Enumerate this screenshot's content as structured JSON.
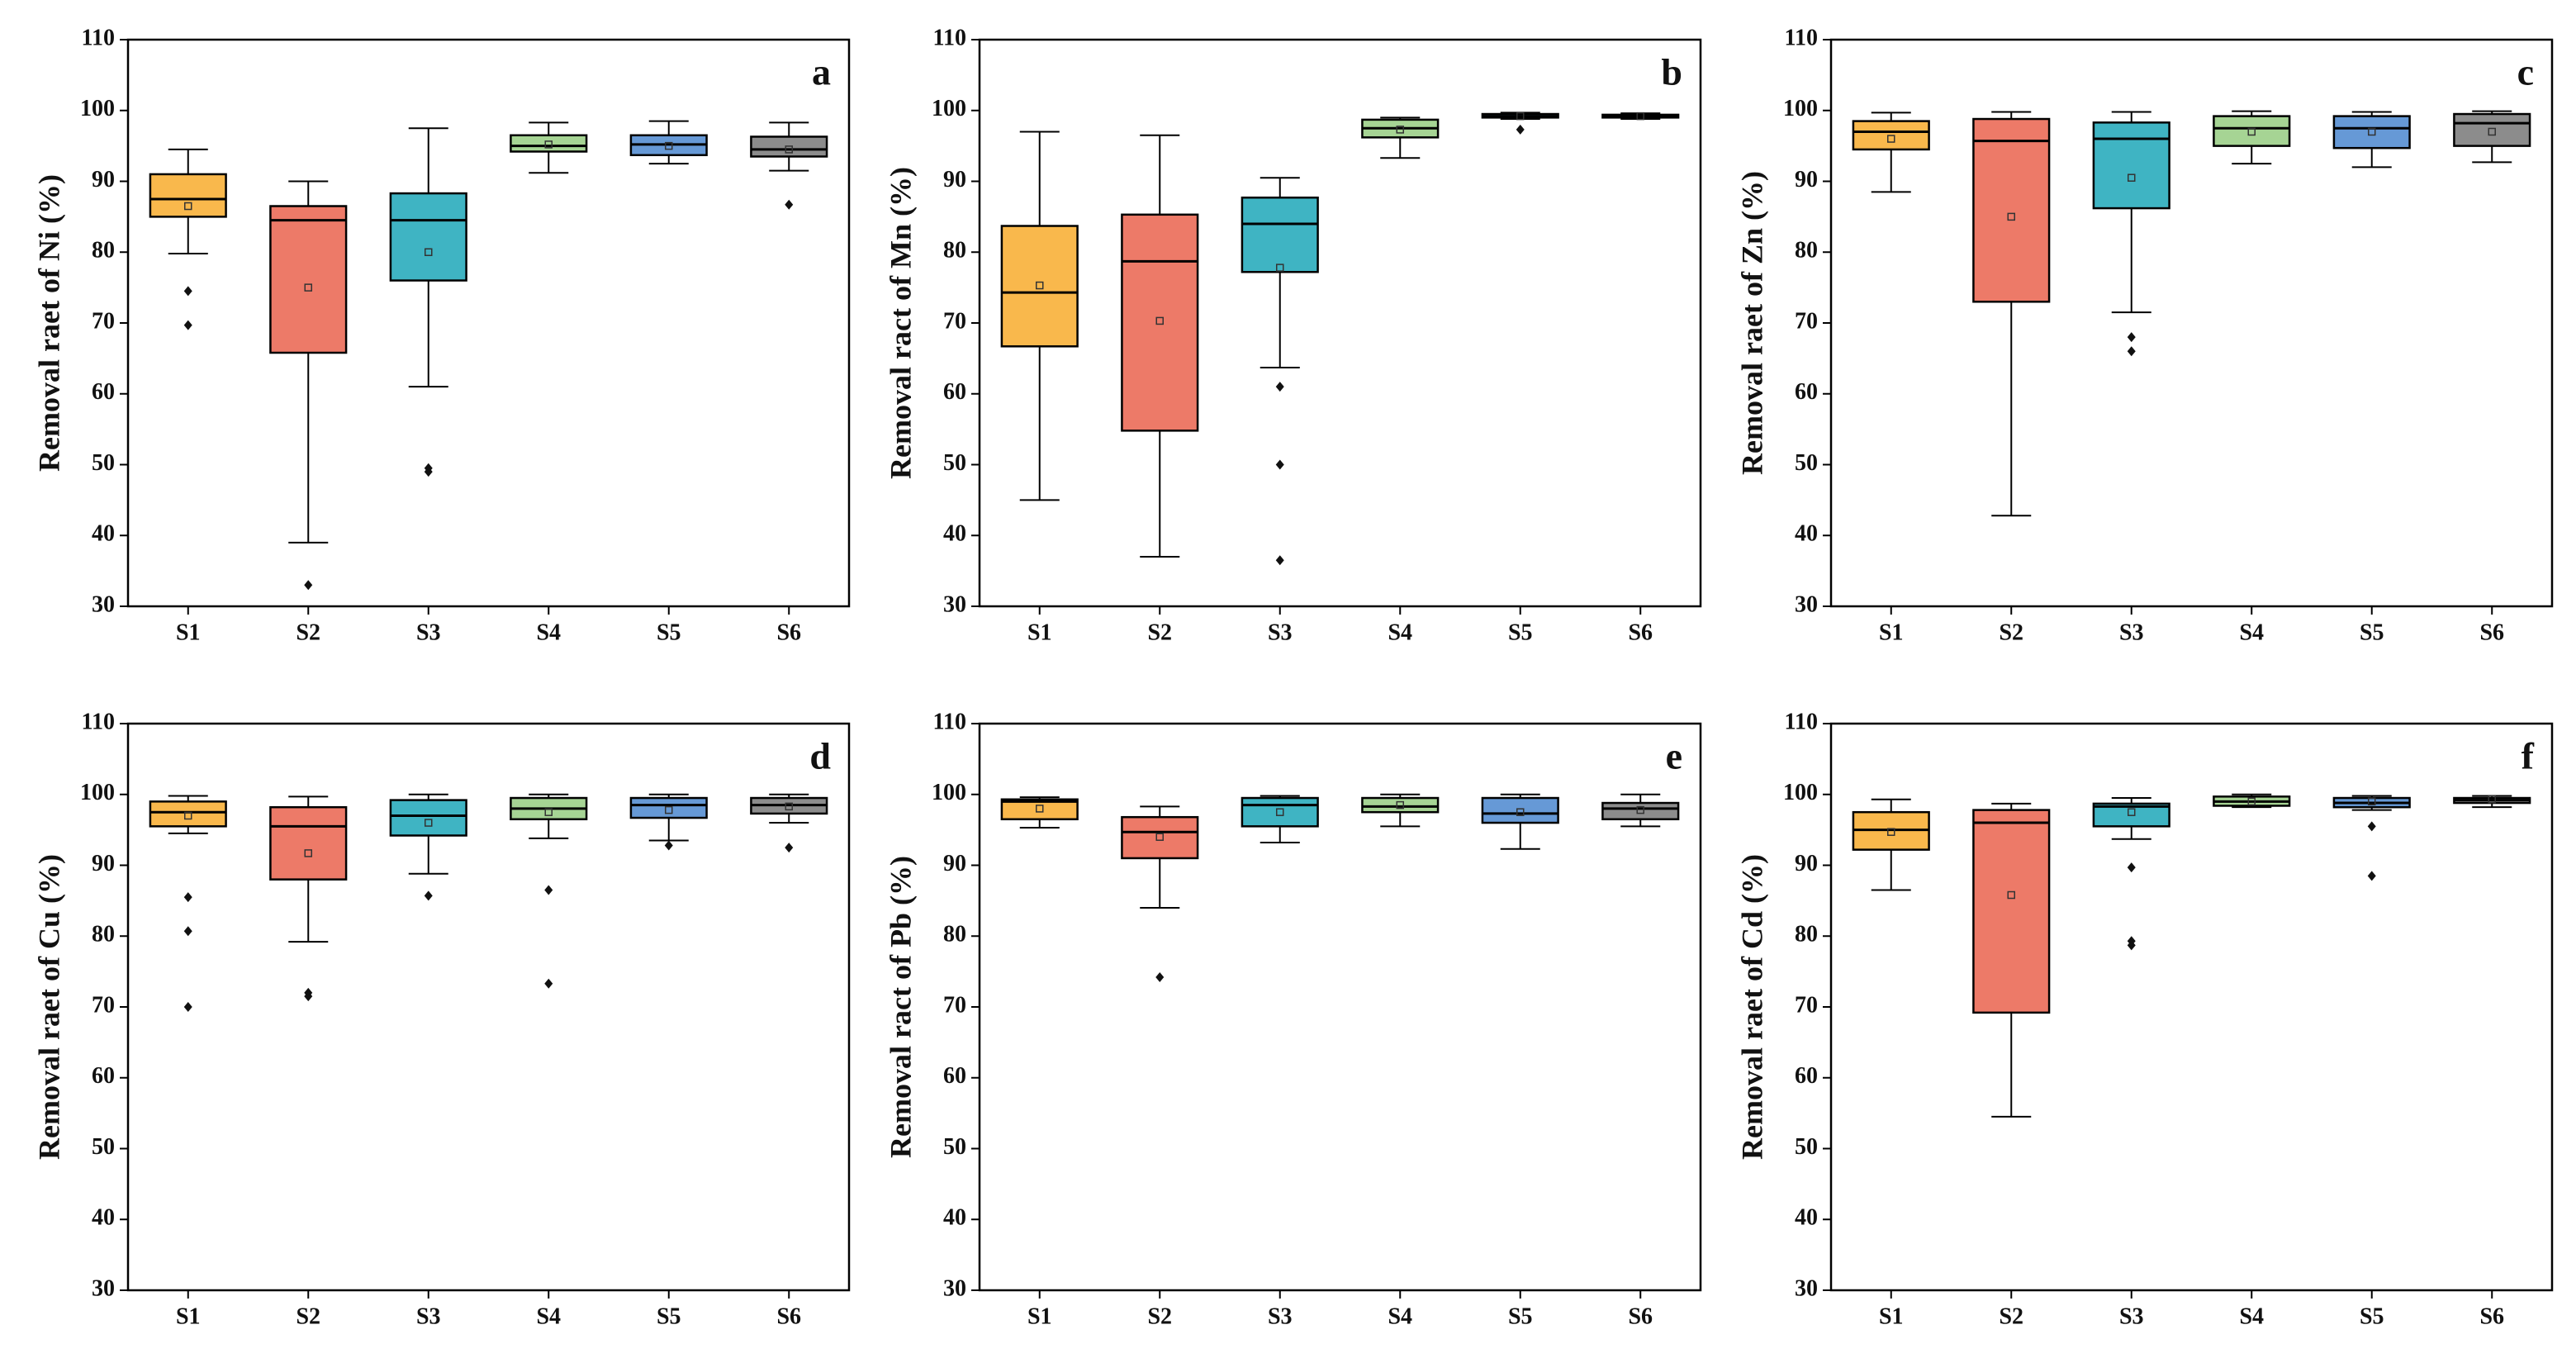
{
  "chart_data": [
    {
      "type": "box",
      "panel": "a",
      "ylabel": "Removal raet of Ni (%)",
      "categories": [
        "S1",
        "S2",
        "S3",
        "S4",
        "S5",
        "S6"
      ],
      "colors": [
        "#f9b84c",
        "#ed7a68",
        "#3fb4c3",
        "#a6d494",
        "#6699d6",
        "#8c8c8c"
      ],
      "ylim": [
        30,
        110
      ],
      "yticks": [
        30,
        40,
        50,
        60,
        70,
        80,
        90,
        100,
        110
      ],
      "boxes": [
        {
          "low": 79.8,
          "q1": 85,
          "median": 87.5,
          "q3": 91,
          "high": 94.5,
          "mean": 86.5,
          "outliers": [
            74.5,
            69.7
          ]
        },
        {
          "low": 39,
          "q1": 65.8,
          "median": 84.5,
          "q3": 86.5,
          "high": 90,
          "mean": 75,
          "outliers": [
            33
          ]
        },
        {
          "low": 61,
          "q1": 76,
          "median": 84.5,
          "q3": 88.3,
          "high": 97.5,
          "mean": 80,
          "outliers": [
            49.5,
            49
          ]
        },
        {
          "low": 91.2,
          "q1": 94.2,
          "median": 95,
          "q3": 96.5,
          "high": 98.3,
          "mean": 95.2,
          "outliers": []
        },
        {
          "low": 92.5,
          "q1": 93.7,
          "median": 95.2,
          "q3": 96.5,
          "high": 98.5,
          "mean": 95,
          "outliers": []
        },
        {
          "low": 91.5,
          "q1": 93.5,
          "median": 94.5,
          "q3": 96.3,
          "high": 98.3,
          "mean": 94.5,
          "outliers": [
            86.7
          ]
        }
      ]
    },
    {
      "type": "box",
      "panel": "b",
      "ylabel": "Removal ract of Mn (%)",
      "categories": [
        "S1",
        "S2",
        "S3",
        "S4",
        "S5",
        "S6"
      ],
      "colors": [
        "#f9b84c",
        "#ed7a68",
        "#3fb4c3",
        "#a6d494",
        "#6699d6",
        "#8c8c8c"
      ],
      "ylim": [
        30,
        110
      ],
      "yticks": [
        30,
        40,
        50,
        60,
        70,
        80,
        90,
        100,
        110
      ],
      "boxes": [
        {
          "low": 45,
          "q1": 66.7,
          "median": 74.3,
          "q3": 83.7,
          "high": 97,
          "mean": 75.3,
          "outliers": []
        },
        {
          "low": 37,
          "q1": 54.8,
          "median": 78.7,
          "q3": 85.3,
          "high": 96.5,
          "mean": 70.3,
          "outliers": []
        },
        {
          "low": 63.7,
          "q1": 77.2,
          "median": 84,
          "q3": 87.7,
          "high": 90.5,
          "mean": 77.8,
          "outliers": [
            61,
            50,
            36.5
          ]
        },
        {
          "low": 93.3,
          "q1": 96.2,
          "median": 97.5,
          "q3": 98.7,
          "high": 99,
          "mean": 97.3,
          "outliers": []
        },
        {
          "low": 98.8,
          "q1": 99,
          "median": 99.2,
          "q3": 99.5,
          "high": 99.7,
          "mean": 99.2,
          "outliers": [
            97.3
          ]
        },
        {
          "low": 98.8,
          "q1": 99,
          "median": 99.2,
          "q3": 99.4,
          "high": 99.6,
          "mean": 99.2,
          "outliers": []
        }
      ]
    },
    {
      "type": "box",
      "panel": "c",
      "ylabel": "Removal raet of Zn (%)",
      "categories": [
        "S1",
        "S2",
        "S3",
        "S4",
        "S5",
        "S6"
      ],
      "colors": [
        "#f9b84c",
        "#ed7a68",
        "#3fb4c3",
        "#a6d494",
        "#6699d6",
        "#8c8c8c"
      ],
      "ylim": [
        30,
        110
      ],
      "yticks": [
        30,
        40,
        50,
        60,
        70,
        80,
        90,
        100,
        110
      ],
      "boxes": [
        {
          "low": 88.5,
          "q1": 94.5,
          "median": 97,
          "q3": 98.5,
          "high": 99.7,
          "mean": 96,
          "outliers": []
        },
        {
          "low": 42.8,
          "q1": 73,
          "median": 95.7,
          "q3": 98.8,
          "high": 99.8,
          "mean": 85,
          "outliers": []
        },
        {
          "low": 71.5,
          "q1": 86.2,
          "median": 96,
          "q3": 98.3,
          "high": 99.8,
          "mean": 90.5,
          "outliers": [
            68,
            66
          ]
        },
        {
          "low": 92.5,
          "q1": 95,
          "median": 97.5,
          "q3": 99.2,
          "high": 99.9,
          "mean": 97,
          "outliers": []
        },
        {
          "low": 92,
          "q1": 94.7,
          "median": 97.5,
          "q3": 99.2,
          "high": 99.8,
          "mean": 97,
          "outliers": []
        },
        {
          "low": 92.7,
          "q1": 95,
          "median": 98.2,
          "q3": 99.5,
          "high": 99.9,
          "mean": 97,
          "outliers": []
        }
      ]
    },
    {
      "type": "box",
      "panel": "d",
      "ylabel": "Removal raet of Cu (%)",
      "categories": [
        "S1",
        "S2",
        "S3",
        "S4",
        "S5",
        "S6"
      ],
      "colors": [
        "#f9b84c",
        "#ed7a68",
        "#3fb4c3",
        "#a6d494",
        "#6699d6",
        "#8c8c8c"
      ],
      "ylim": [
        30,
        110
      ],
      "yticks": [
        30,
        40,
        50,
        60,
        70,
        80,
        90,
        100,
        110
      ],
      "boxes": [
        {
          "low": 94.5,
          "q1": 95.5,
          "median": 97.5,
          "q3": 99,
          "high": 99.8,
          "mean": 97,
          "outliers": [
            85.5,
            80.7,
            70
          ]
        },
        {
          "low": 79.2,
          "q1": 88,
          "median": 95.5,
          "q3": 98.2,
          "high": 99.7,
          "mean": 91.7,
          "outliers": [
            72,
            71.5
          ]
        },
        {
          "low": 88.8,
          "q1": 94.2,
          "median": 97,
          "q3": 99.2,
          "high": 100,
          "mean": 96,
          "outliers": [
            85.7
          ]
        },
        {
          "low": 93.8,
          "q1": 96.5,
          "median": 98,
          "q3": 99.5,
          "high": 100,
          "mean": 97.5,
          "outliers": [
            86.5,
            73.3
          ]
        },
        {
          "low": 93.5,
          "q1": 96.7,
          "median": 98.5,
          "q3": 99.5,
          "high": 100,
          "mean": 97.8,
          "outliers": [
            92.8
          ]
        },
        {
          "low": 96,
          "q1": 97.3,
          "median": 98.5,
          "q3": 99.5,
          "high": 100,
          "mean": 98.3,
          "outliers": [
            92.5
          ]
        }
      ]
    },
    {
      "type": "box",
      "panel": "e",
      "ylabel": "Removal ract of Pb (%)",
      "categories": [
        "S1",
        "S2",
        "S3",
        "S4",
        "S5",
        "S6"
      ],
      "colors": [
        "#f9b84c",
        "#ed7a68",
        "#3fb4c3",
        "#a6d494",
        "#6699d6",
        "#8c8c8c"
      ],
      "ylim": [
        30,
        110
      ],
      "yticks": [
        30,
        40,
        50,
        60,
        70,
        80,
        90,
        100,
        110
      ],
      "boxes": [
        {
          "low": 95.3,
          "q1": 96.5,
          "median": 99,
          "q3": 99.3,
          "high": 99.6,
          "mean": 98,
          "outliers": []
        },
        {
          "low": 84,
          "q1": 91,
          "median": 94.7,
          "q3": 96.8,
          "high": 98.3,
          "mean": 94,
          "outliers": [
            74.2
          ]
        },
        {
          "low": 93.2,
          "q1": 95.5,
          "median": 98.5,
          "q3": 99.5,
          "high": 99.8,
          "mean": 97.5,
          "outliers": []
        },
        {
          "low": 95.5,
          "q1": 97.5,
          "median": 98.3,
          "q3": 99.5,
          "high": 100,
          "mean": 98.5,
          "outliers": []
        },
        {
          "low": 92.3,
          "q1": 96,
          "median": 97.3,
          "q3": 99.5,
          "high": 100,
          "mean": 97.5,
          "outliers": []
        },
        {
          "low": 95.5,
          "q1": 96.5,
          "median": 98,
          "q3": 98.8,
          "high": 100,
          "mean": 97.8,
          "outliers": []
        }
      ]
    },
    {
      "type": "box",
      "panel": "f",
      "ylabel": "Removal raet of Cd (%)",
      "categories": [
        "S1",
        "S2",
        "S3",
        "S4",
        "S5",
        "S6"
      ],
      "colors": [
        "#f9b84c",
        "#ed7a68",
        "#3fb4c3",
        "#a6d494",
        "#6699d6",
        "#8c8c8c"
      ],
      "ylim": [
        30,
        110
      ],
      "yticks": [
        30,
        40,
        50,
        60,
        70,
        80,
        90,
        100,
        110
      ],
      "boxes": [
        {
          "low": 86.5,
          "q1": 92.2,
          "median": 95,
          "q3": 97.5,
          "high": 99.3,
          "mean": 94.7,
          "outliers": []
        },
        {
          "low": 54.5,
          "q1": 69.2,
          "median": 96,
          "q3": 97.8,
          "high": 98.7,
          "mean": 85.8,
          "outliers": []
        },
        {
          "low": 93.7,
          "q1": 95.5,
          "median": 98.3,
          "q3": 98.7,
          "high": 99.5,
          "mean": 97.5,
          "outliers": [
            89.7,
            79.3,
            78.7
          ]
        },
        {
          "low": 98.2,
          "q1": 98.4,
          "median": 99,
          "q3": 99.7,
          "high": 100,
          "mean": 99,
          "outliers": []
        },
        {
          "low": 97.8,
          "q1": 98.2,
          "median": 98.8,
          "q3": 99.5,
          "high": 99.8,
          "mean": 99,
          "outliers": [
            95.5,
            88.5
          ]
        },
        {
          "low": 98.2,
          "q1": 98.8,
          "median": 99.2,
          "q3": 99.5,
          "high": 99.8,
          "mean": 99.3,
          "outliers": []
        }
      ]
    }
  ]
}
